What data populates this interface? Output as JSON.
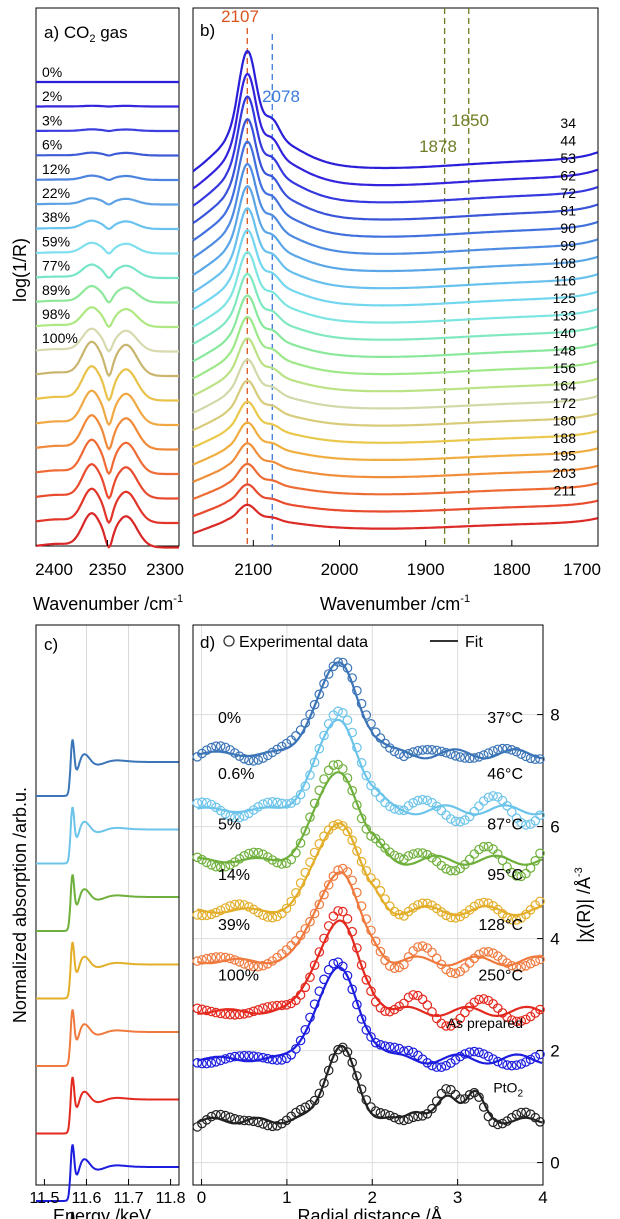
{
  "chart_data": [
    {
      "panel": "a",
      "type": "line",
      "title": "a) CO",
      "title_sub": "2",
      "title_suffix": " gas",
      "xlabel": "Wavenumber /cm",
      "xlabel_sup": "-1",
      "ylabel": "log(1/R)",
      "xlim": [
        2400,
        2300
      ],
      "xticks": [
        2400,
        2350,
        2300
      ],
      "series_labels": [
        "0%",
        "2%",
        "3%",
        "6%",
        "12%",
        "22%",
        "38%",
        "59%",
        "77%",
        "89%",
        "98%",
        "100%"
      ],
      "colors": [
        "#2a1fd9",
        "#3525dd",
        "#3b3fe0",
        "#3d5cd6",
        "#4c83df",
        "#5ea2e6",
        "#69c3ef",
        "#7fdfef",
        "#79e5c8",
        "#8ee79a",
        "#aee882",
        "#d8d9ae",
        "#c9b56e",
        "#e9c24a",
        "#f0a843",
        "#f08a3a",
        "#ef6a34",
        "#e94b2e",
        "#e2352a",
        "#d92626"
      ]
    },
    {
      "panel": "b",
      "type": "line",
      "title": "b)",
      "xlabel": "Wavenumber /cm",
      "xlabel_sup": "-1",
      "xlim": [
        2170,
        1700
      ],
      "xticks": [
        2100,
        2000,
        1900,
        1800,
        1700
      ],
      "series_labels": [
        "34",
        "44",
        "53",
        "62",
        "72",
        "81",
        "90",
        "99",
        "108",
        "116",
        "125",
        "133",
        "140",
        "148",
        "156",
        "164",
        "172",
        "180",
        "188",
        "195",
        "203",
        "211"
      ],
      "peaks": [
        {
          "label": "2107",
          "x": 2107,
          "color": "#d9551f"
        },
        {
          "label": "2078",
          "x": 2078,
          "color": "#3b7bdc"
        },
        {
          "label": "1878",
          "x": 1878,
          "color": "#6e7d23"
        },
        {
          "label": "1850",
          "x": 1850,
          "color": "#6e7d23"
        }
      ],
      "colors": [
        "#2a1fd9",
        "#3323dc",
        "#3438de",
        "#3a54d9",
        "#4270de",
        "#4e8ce2",
        "#5aa6e7",
        "#68c0ee",
        "#73d6f1",
        "#7de5e1",
        "#7fe8bf",
        "#89e89c",
        "#9de889",
        "#bbe285",
        "#d3d8a8",
        "#d8cc7a",
        "#e9c84c",
        "#f0ae41",
        "#f08e3a",
        "#ee6c33",
        "#e84b2e",
        "#dc2a27"
      ]
    },
    {
      "panel": "c",
      "type": "line",
      "title": "c)",
      "xlabel": "Energy /keV",
      "ylabel": "Normalized absorption /arb.u.",
      "xlim": [
        11.48,
        11.82
      ],
      "xticks": [
        11.5,
        11.6,
        11.7,
        11.8
      ],
      "xtick_labels": [
        "11.5",
        "11.6",
        "11.7",
        "11.8"
      ],
      "colors": [
        "#3b75b8",
        "#6cc4ea",
        "#6fb03c",
        "#e3ae2a",
        "#f07a3e",
        "#e4291f",
        "#1d1ddf",
        "#222222"
      ]
    },
    {
      "panel": "d",
      "type": "line",
      "title": "d)",
      "legend": {
        "experimental": "Experimental data",
        "fit": "Fit",
        "placement": "top"
      },
      "xlabel": "Radial distance /Å",
      "ylabel": "|χ(R)| /Å",
      "ylabel_sup": "-3",
      "xlim": [
        -0.1,
        4.0
      ],
      "ylim": [
        -0.4,
        9.6
      ],
      "xticks": [
        0,
        1,
        2,
        3,
        4
      ],
      "yticks": [
        0,
        2,
        4,
        6,
        8
      ],
      "traces": [
        {
          "left": "0%",
          "right": "37°C",
          "offset": 7.3,
          "color": "#3b75b8"
        },
        {
          "left": "0.6%",
          "right": "46°C",
          "offset": 6.3,
          "color": "#6cc4ea"
        },
        {
          "left": "5%",
          "right": "87°C",
          "offset": 5.4,
          "color": "#6fb03c"
        },
        {
          "left": "14%",
          "right": "95°C",
          "offset": 4.5,
          "color": "#e3ae2a"
        },
        {
          "left": "39%",
          "right": "128°C",
          "offset": 3.6,
          "color": "#f07a3e"
        },
        {
          "left": "100%",
          "right": "250°C",
          "offset": 2.7,
          "color": "#e4291f"
        },
        {
          "left": "",
          "right": "As prepared",
          "offset": 1.85,
          "color": "#1d1ddf"
        },
        {
          "left": "",
          "right": "PtO",
          "right_sub": "2",
          "offset": 0.7,
          "color": "#222222"
        }
      ]
    }
  ]
}
